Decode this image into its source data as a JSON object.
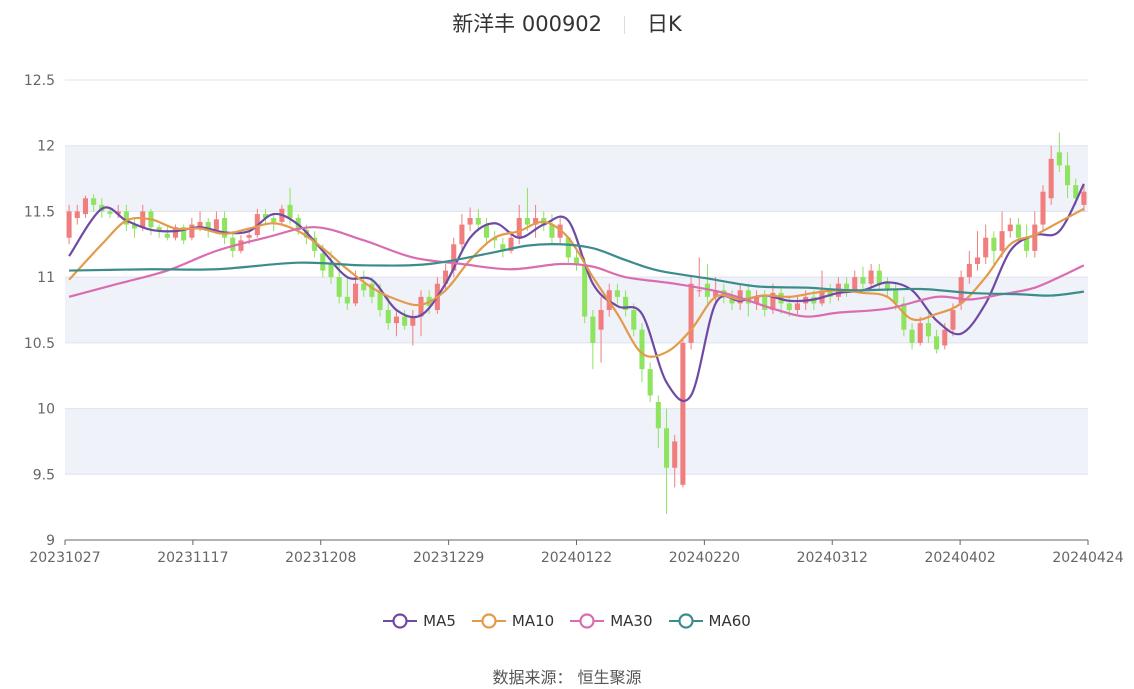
{
  "header": {
    "stock": "新洋丰 000902",
    "period": "日K"
  },
  "source": "数据来源： 恒生聚源",
  "colors": {
    "up": "#f07e7e",
    "down": "#8ee35f",
    "MA5": "#6f4aa5",
    "MA10": "#e39a4b",
    "MA30": "#d96db0",
    "MA60": "#3d8c8c",
    "band": "#f0f2f9",
    "grid": "#dde3ee",
    "axis": "#666666"
  },
  "chart_data": {
    "type": "candlestick",
    "ylim": [
      9,
      12.5
    ],
    "yticks": [
      "12.5",
      "12",
      "11.5",
      "11",
      "10.5",
      "10",
      "9.5",
      "9"
    ],
    "xticks": [
      "20231027",
      "20231117",
      "20231208",
      "20231229",
      "20240122",
      "20240220",
      "20240312",
      "20240402",
      "20240424"
    ],
    "legend": [
      "MA5",
      "MA10",
      "MA30",
      "MA60"
    ],
    "candles": [
      [
        11.3,
        11.5,
        11.25,
        11.55
      ],
      [
        11.45,
        11.5,
        11.4,
        11.55
      ],
      [
        11.48,
        11.6,
        11.45,
        11.62
      ],
      [
        11.6,
        11.55,
        11.5,
        11.63
      ],
      [
        11.55,
        11.5,
        11.45,
        11.6
      ],
      [
        11.5,
        11.48,
        11.45,
        11.52
      ],
      [
        11.48,
        11.5,
        11.45,
        11.55
      ],
      [
        11.5,
        11.4,
        11.35,
        11.55
      ],
      [
        11.4,
        11.37,
        11.3,
        11.45
      ],
      [
        11.38,
        11.5,
        11.35,
        11.55
      ],
      [
        11.5,
        11.38,
        11.32,
        11.52
      ],
      [
        11.38,
        11.35,
        11.3,
        11.4
      ],
      [
        11.33,
        11.3,
        11.28,
        11.38
      ],
      [
        11.3,
        11.38,
        11.28,
        11.4
      ],
      [
        11.38,
        11.28,
        11.25,
        11.4
      ],
      [
        11.3,
        11.4,
        11.28,
        11.45
      ],
      [
        11.38,
        11.42,
        11.35,
        11.5
      ],
      [
        11.42,
        11.36,
        11.3,
        11.45
      ],
      [
        11.36,
        11.44,
        11.33,
        11.5
      ],
      [
        11.45,
        11.3,
        11.25,
        11.5
      ],
      [
        11.3,
        11.2,
        11.15,
        11.35
      ],
      [
        11.2,
        11.28,
        11.18,
        11.32
      ],
      [
        11.3,
        11.32,
        11.25,
        11.35
      ],
      [
        11.32,
        11.48,
        11.3,
        11.52
      ],
      [
        11.48,
        11.45,
        11.4,
        11.52
      ],
      [
        11.45,
        11.42,
        11.35,
        11.48
      ],
      [
        11.42,
        11.52,
        11.4,
        11.55
      ],
      [
        11.55,
        11.45,
        11.4,
        11.68
      ],
      [
        11.45,
        11.36,
        11.32,
        11.48
      ],
      [
        11.36,
        11.3,
        11.25,
        11.4
      ],
      [
        11.3,
        11.2,
        11.15,
        11.35
      ],
      [
        11.18,
        11.05,
        11.0,
        11.25
      ],
      [
        11.1,
        11.0,
        10.95,
        11.2
      ],
      [
        11.0,
        10.85,
        10.8,
        11.1
      ],
      [
        10.85,
        10.8,
        10.75,
        11.0
      ],
      [
        10.8,
        10.95,
        10.78,
        11.05
      ],
      [
        10.95,
        10.9,
        10.85,
        11.05
      ],
      [
        10.95,
        10.85,
        10.8,
        11.0
      ],
      [
        10.9,
        10.75,
        10.7,
        10.95
      ],
      [
        10.75,
        10.65,
        10.6,
        10.85
      ],
      [
        10.65,
        10.7,
        10.55,
        10.75
      ],
      [
        10.7,
        10.63,
        10.6,
        10.75
      ],
      [
        10.63,
        10.7,
        10.48,
        10.75
      ],
      [
        10.7,
        10.85,
        10.55,
        10.9
      ],
      [
        10.85,
        10.78,
        10.72,
        10.9
      ],
      [
        10.75,
        10.95,
        10.72,
        11.0
      ],
      [
        10.95,
        11.05,
        10.9,
        11.1
      ],
      [
        11.05,
        11.25,
        11.0,
        11.3
      ],
      [
        11.25,
        11.4,
        11.2,
        11.48
      ],
      [
        11.4,
        11.45,
        11.35,
        11.53
      ],
      [
        11.45,
        11.4,
        11.35,
        11.52
      ],
      [
        11.4,
        11.3,
        11.25,
        11.45
      ],
      [
        11.3,
        11.28,
        11.22,
        11.35
      ],
      [
        11.25,
        11.2,
        11.15,
        11.3
      ],
      [
        11.2,
        11.3,
        11.18,
        11.35
      ],
      [
        11.3,
        11.45,
        11.25,
        11.55
      ],
      [
        11.45,
        11.4,
        11.35,
        11.68
      ],
      [
        11.4,
        11.45,
        11.3,
        11.55
      ],
      [
        11.45,
        11.4,
        11.35,
        11.5
      ],
      [
        11.4,
        11.3,
        11.25,
        11.48
      ],
      [
        11.3,
        11.4,
        11.25,
        11.45
      ],
      [
        11.3,
        11.15,
        11.1,
        11.3
      ],
      [
        11.15,
        11.1,
        11.05,
        11.2
      ],
      [
        11.1,
        10.7,
        10.65,
        11.15
      ],
      [
        10.7,
        10.5,
        10.3,
        10.75
      ],
      [
        10.6,
        10.75,
        10.35,
        10.85
      ],
      [
        10.75,
        10.9,
        10.7,
        10.95
      ],
      [
        10.9,
        10.85,
        10.8,
        10.95
      ],
      [
        10.85,
        10.75,
        10.7,
        10.9
      ],
      [
        10.75,
        10.6,
        10.55,
        10.8
      ],
      [
        10.6,
        10.3,
        10.2,
        10.65
      ],
      [
        10.3,
        10.1,
        10.05,
        10.35
      ],
      [
        10.05,
        9.85,
        9.7,
        10.1
      ],
      [
        9.85,
        9.55,
        9.2,
        10.0
      ],
      [
        9.55,
        9.75,
        9.4,
        9.8
      ],
      [
        9.42,
        10.5,
        9.4,
        10.52
      ],
      [
        10.5,
        10.95,
        10.45,
        11.0
      ],
      [
        10.9,
        10.9,
        10.85,
        11.15
      ],
      [
        10.95,
        10.85,
        10.8,
        11.1
      ],
      [
        10.85,
        10.9,
        10.8,
        11.0
      ],
      [
        10.9,
        10.85,
        10.8,
        10.95
      ],
      [
        10.85,
        10.8,
        10.75,
        10.9
      ],
      [
        10.8,
        10.9,
        10.75,
        10.95
      ],
      [
        10.9,
        10.8,
        10.7,
        10.95
      ],
      [
        10.8,
        10.85,
        10.75,
        10.9
      ],
      [
        10.85,
        10.75,
        10.7,
        10.9
      ],
      [
        10.75,
        10.88,
        10.72,
        10.95
      ],
      [
        10.88,
        10.8,
        10.72,
        10.92
      ],
      [
        10.8,
        10.75,
        10.7,
        10.85
      ],
      [
        10.75,
        10.8,
        10.72,
        10.85
      ],
      [
        10.8,
        10.85,
        10.75,
        10.9
      ],
      [
        10.85,
        10.8,
        10.75,
        10.9
      ],
      [
        10.8,
        10.9,
        10.78,
        11.05
      ],
      [
        10.9,
        10.85,
        10.8,
        10.95
      ],
      [
        10.85,
        10.95,
        10.82,
        11.0
      ],
      [
        10.95,
        10.9,
        10.85,
        11.0
      ],
      [
        10.9,
        11.0,
        10.88,
        11.05
      ],
      [
        11.0,
        10.95,
        10.9,
        11.08
      ],
      [
        10.95,
        11.05,
        10.92,
        11.1
      ],
      [
        11.05,
        10.95,
        10.9,
        11.1
      ],
      [
        10.95,
        10.9,
        10.85,
        11.0
      ],
      [
        10.9,
        10.8,
        10.75,
        10.95
      ],
      [
        10.8,
        10.6,
        10.55,
        10.85
      ],
      [
        10.6,
        10.5,
        10.45,
        10.65
      ],
      [
        10.5,
        10.65,
        10.48,
        10.7
      ],
      [
        10.65,
        10.55,
        10.5,
        10.75
      ],
      [
        10.55,
        10.45,
        10.42,
        10.6
      ],
      [
        10.48,
        10.6,
        10.45,
        10.65
      ],
      [
        10.6,
        10.75,
        10.55,
        10.8
      ],
      [
        10.8,
        11.0,
        10.75,
        11.05
      ],
      [
        11.0,
        11.1,
        10.95,
        11.2
      ],
      [
        11.1,
        11.15,
        11.05,
        11.35
      ],
      [
        11.15,
        11.3,
        11.1,
        11.4
      ],
      [
        11.3,
        11.2,
        11.1,
        11.35
      ],
      [
        11.2,
        11.35,
        11.15,
        11.5
      ],
      [
        11.35,
        11.4,
        11.3,
        11.45
      ],
      [
        11.4,
        11.3,
        11.25,
        11.45
      ],
      [
        11.3,
        11.2,
        11.15,
        11.4
      ],
      [
        11.2,
        11.4,
        11.15,
        11.5
      ],
      [
        11.4,
        11.65,
        11.35,
        11.7
      ],
      [
        11.6,
        11.9,
        11.55,
        12.0
      ],
      [
        11.95,
        11.85,
        11.8,
        12.1
      ],
      [
        11.85,
        11.7,
        11.6,
        11.95
      ],
      [
        11.7,
        11.6,
        11.55,
        11.75
      ],
      [
        11.55,
        11.65,
        11.5,
        11.7
      ]
    ],
    "series": [
      {
        "name": "MA5",
        "x": [
          0,
          4,
          7,
          10,
          13,
          16,
          19,
          22,
          25,
          28,
          31,
          34,
          37,
          40,
          43,
          46,
          49,
          52,
          55,
          58,
          61,
          64,
          67,
          70,
          73,
          76,
          79,
          82,
          85,
          88,
          91,
          94,
          97,
          100,
          103,
          106,
          109,
          112,
          115,
          118,
          121,
          124
        ],
        "y": [
          11.16,
          11.52,
          11.43,
          11.36,
          11.35,
          11.38,
          11.34,
          11.35,
          11.48,
          11.4,
          11.2,
          11.0,
          10.98,
          10.75,
          10.71,
          10.95,
          11.3,
          11.41,
          11.3,
          11.4,
          11.43,
          10.95,
          10.78,
          10.72,
          10.2,
          10.1,
          10.8,
          10.82,
          10.86,
          10.82,
          10.83,
          10.88,
          10.9,
          10.96,
          10.9,
          10.67,
          10.57,
          10.8,
          11.2,
          11.32,
          11.35,
          11.71
        ]
      },
      {
        "name": "MA10",
        "x": [
          0,
          4,
          7,
          10,
          13,
          16,
          19,
          22,
          25,
          28,
          31,
          34,
          37,
          40,
          43,
          46,
          49,
          52,
          55,
          58,
          61,
          64,
          67,
          70,
          73,
          76,
          79,
          82,
          85,
          88,
          91,
          94,
          97,
          100,
          103,
          106,
          109,
          112,
          115,
          118,
          121,
          124
        ],
        "y": [
          10.98,
          11.25,
          11.43,
          11.44,
          11.37,
          11.37,
          11.33,
          11.37,
          11.41,
          11.35,
          11.22,
          11.06,
          10.92,
          10.83,
          10.79,
          10.9,
          11.13,
          11.3,
          11.35,
          11.42,
          11.3,
          11.0,
          10.72,
          10.42,
          10.43,
          10.6,
          10.85,
          10.83,
          10.86,
          10.85,
          10.88,
          10.9,
          10.88,
          10.85,
          10.68,
          10.72,
          10.8,
          11.0,
          11.25,
          11.32,
          11.42,
          11.52
        ]
      },
      {
        "name": "MA30",
        "x": [
          0,
          6,
          12,
          18,
          24,
          30,
          36,
          42,
          48,
          54,
          60,
          64,
          68,
          74,
          80,
          86,
          90,
          94,
          100,
          106,
          110,
          114,
          118,
          122,
          124
        ],
        "y": [
          10.85,
          10.95,
          11.05,
          11.2,
          11.3,
          11.38,
          11.28,
          11.15,
          11.1,
          11.06,
          11.1,
          11.08,
          11.0,
          10.95,
          10.88,
          10.76,
          10.7,
          10.73,
          10.76,
          10.85,
          10.83,
          10.87,
          10.92,
          11.03,
          11.09
        ]
      },
      {
        "name": "MA60",
        "x": [
          0,
          10,
          18,
          28,
          36,
          44,
          52,
          56,
          60,
          64,
          68,
          72,
          78,
          84,
          90,
          96,
          104,
          110,
          116,
          120,
          124
        ],
        "y": [
          11.05,
          11.06,
          11.06,
          11.11,
          11.09,
          11.1,
          11.19,
          11.24,
          11.25,
          11.22,
          11.13,
          11.05,
          10.99,
          10.93,
          10.92,
          10.9,
          10.91,
          10.88,
          10.87,
          10.86,
          10.89
        ]
      }
    ]
  }
}
